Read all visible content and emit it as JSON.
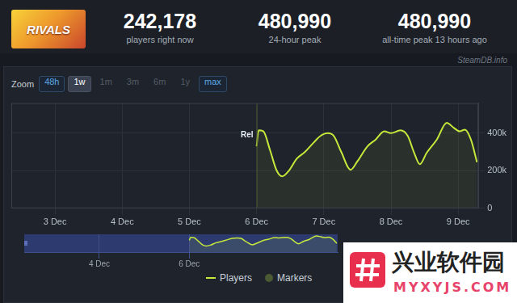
{
  "header": {
    "icon_text": "RIVALS",
    "stats": [
      {
        "value": "242,178",
        "label": "players right now"
      },
      {
        "value": "480,990",
        "label": "24-hour peak"
      },
      {
        "value": "480,990",
        "label": "all-time peak 13 hours ago"
      }
    ]
  },
  "source": "SteamDB.info",
  "zoom": {
    "label": "Zoom",
    "buttons": [
      "48h",
      "1w",
      "1m",
      "3m",
      "6m",
      "1y",
      "max"
    ],
    "selected": "1w",
    "disabled": [
      "1m",
      "3m",
      "6m",
      "1y"
    ]
  },
  "chart_data": {
    "type": "line",
    "x": [
      6.0,
      6.03,
      6.1,
      6.2,
      6.3,
      6.38,
      6.48,
      6.6,
      6.72,
      6.85,
      6.95,
      7.06,
      7.15,
      7.26,
      7.4,
      7.5,
      7.65,
      7.77,
      7.9,
      8.0,
      8.14,
      8.25,
      8.34,
      8.43,
      8.53,
      8.68,
      8.83,
      8.93,
      9.02,
      9.1,
      9.19,
      9.28
    ],
    "series": [
      {
        "name": "Players",
        "color": "#c6e83a",
        "values": [
          330000,
          415000,
          410000,
          310000,
          200000,
          170000,
          200000,
          265000,
          300000,
          350000,
          385000,
          400000,
          385000,
          300000,
          205000,
          250000,
          330000,
          365000,
          410000,
          400000,
          415000,
          385000,
          300000,
          235000,
          295000,
          365000,
          455000,
          430000,
          410000,
          418000,
          365000,
          245000
        ]
      }
    ],
    "markers": {
      "name": "Markers",
      "color": "#4a5a32",
      "items": [
        {
          "x": 6,
          "label": "Rel"
        }
      ]
    },
    "xlim": [
      2.35,
      9.3
    ],
    "xticks": [
      {
        "value": 3,
        "label": "3 Dec"
      },
      {
        "value": 4,
        "label": "4 Dec"
      },
      {
        "value": 5,
        "label": "5 Dec"
      },
      {
        "value": 6,
        "label": "6 Dec"
      },
      {
        "value": 7,
        "label": "7 Dec"
      },
      {
        "value": 8,
        "label": "8 Dec"
      },
      {
        "value": 9,
        "label": "9 Dec"
      }
    ],
    "ylim": [
      0,
      560000
    ],
    "yticks": [
      0,
      {
        "value": 200000,
        "label": "200k"
      },
      {
        "value": 400000,
        "label": "400k"
      }
    ],
    "grid": true,
    "legend": "bottom"
  },
  "navigator": {
    "xlim": [
      2.33,
      9.3
    ],
    "ylim": [
      0,
      500000
    ],
    "xticks": [
      {
        "value": 4,
        "label": "4 Dec"
      },
      {
        "value": 6,
        "label": "6 Dec"
      }
    ]
  },
  "watermark": {
    "text": "兴业软件园",
    "subtitle": "MYXYJS.COM"
  }
}
